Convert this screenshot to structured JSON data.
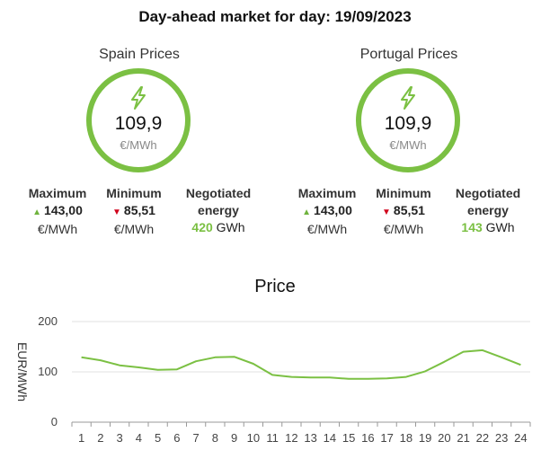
{
  "header": {
    "title": "Day-ahead market for day: 19/09/2023"
  },
  "spain": {
    "title": "Spain Prices",
    "price": "109,9",
    "price_unit": "€/MWh",
    "max_label": "Maximum",
    "max_value": "143,00",
    "max_unit": "€/MWh",
    "min_label": "Minimum",
    "min_value": "85,51",
    "min_unit": "€/MWh",
    "energy_label_1": "Negotiated",
    "energy_label_2": "energy",
    "energy_value": "420",
    "energy_unit": "GWh"
  },
  "portugal": {
    "title": "Portugal Prices",
    "price": "109,9",
    "price_unit": "€/MWh",
    "max_label": "Maximum",
    "max_value": "143,00",
    "max_unit": "€/MWh",
    "min_label": "Minimum",
    "min_value": "85,51",
    "min_unit": "€/MWh",
    "energy_label_1": "Negotiated",
    "energy_label_2": "energy",
    "energy_value": "143",
    "energy_unit": "GWh"
  },
  "colors": {
    "accent": "#7bc043",
    "up": "#6fb33d",
    "down": "#d0021b"
  },
  "icons": {
    "gauge": "lightning-bolt-icon",
    "max": "triangle-up-icon",
    "min": "triangle-down-icon"
  },
  "chart_data": {
    "type": "line",
    "title": "Price",
    "ylabel": "EUR/MWh",
    "xlabel": "",
    "ylim": [
      0,
      200
    ],
    "yticks": [
      0,
      100,
      200
    ],
    "x": [
      1,
      2,
      3,
      4,
      5,
      6,
      7,
      8,
      9,
      10,
      11,
      12,
      13,
      14,
      15,
      16,
      17,
      18,
      19,
      20,
      21,
      22,
      23,
      24
    ],
    "values": [
      129,
      123,
      113,
      109,
      104,
      105,
      121,
      129,
      130,
      116,
      94,
      90,
      89,
      89,
      86,
      86,
      87,
      90,
      101,
      120,
      140,
      143,
      129,
      114
    ],
    "grid": "horizontal",
    "color": "#7bc043"
  }
}
